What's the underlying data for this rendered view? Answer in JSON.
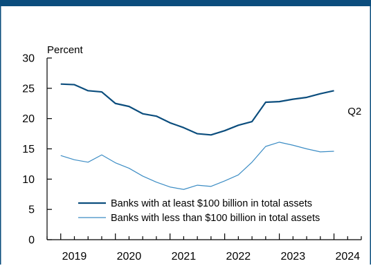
{
  "chart_data": {
    "type": "line",
    "ylabel": "Percent",
    "xlabel": "",
    "ylim": [
      0,
      30
    ],
    "y_ticks": [
      0,
      5,
      10,
      15,
      20,
      25,
      30
    ],
    "x_start": 2018.75,
    "x_end": 2024.5,
    "year_labels": [
      {
        "label": "2019",
        "x": 2019.25
      },
      {
        "label": "2020",
        "x": 2020.25
      },
      {
        "label": "2021",
        "x": 2021.25
      },
      {
        "label": "2022",
        "x": 2022.25
      },
      {
        "label": "2023",
        "x": 2023.25
      },
      {
        "label": "2024",
        "x": 2024.25
      }
    ],
    "annotation": {
      "text": "Q2",
      "x": 2024.25,
      "y": 21.2
    },
    "colors": {
      "frame": "#0b4d7d",
      "series_dark": "#0b4d7d",
      "series_light": "#3b8cc4",
      "axis": "#000000"
    },
    "grid": false,
    "legend_placement": "bottom-center",
    "series": [
      {
        "name": "Banks with at least $100 billion in total assets",
        "values": [
          {
            "x": 2019.0,
            "y": 25.7
          },
          {
            "x": 2019.25,
            "y": 25.6
          },
          {
            "x": 2019.5,
            "y": 24.6
          },
          {
            "x": 2019.75,
            "y": 24.4
          },
          {
            "x": 2020.0,
            "y": 22.5
          },
          {
            "x": 2020.25,
            "y": 22.0
          },
          {
            "x": 2020.5,
            "y": 20.8
          },
          {
            "x": 2020.75,
            "y": 20.4
          },
          {
            "x": 2021.0,
            "y": 19.3
          },
          {
            "x": 2021.25,
            "y": 18.5
          },
          {
            "x": 2021.5,
            "y": 17.5
          },
          {
            "x": 2021.75,
            "y": 17.3
          },
          {
            "x": 2022.0,
            "y": 18.0
          },
          {
            "x": 2022.25,
            "y": 18.9
          },
          {
            "x": 2022.5,
            "y": 19.5
          },
          {
            "x": 2022.75,
            "y": 22.7
          },
          {
            "x": 2023.0,
            "y": 22.8
          },
          {
            "x": 2023.25,
            "y": 23.2
          },
          {
            "x": 2023.5,
            "y": 23.5
          },
          {
            "x": 2023.75,
            "y": 24.1
          },
          {
            "x": 2024.0,
            "y": 24.6
          }
        ]
      },
      {
        "name": "Banks with less than $100 billion in total assets",
        "values": [
          {
            "x": 2019.0,
            "y": 13.9
          },
          {
            "x": 2019.25,
            "y": 13.2
          },
          {
            "x": 2019.5,
            "y": 12.8
          },
          {
            "x": 2019.75,
            "y": 14.0
          },
          {
            "x": 2020.0,
            "y": 12.7
          },
          {
            "x": 2020.25,
            "y": 11.8
          },
          {
            "x": 2020.5,
            "y": 10.5
          },
          {
            "x": 2020.75,
            "y": 9.5
          },
          {
            "x": 2021.0,
            "y": 8.7
          },
          {
            "x": 2021.25,
            "y": 8.3
          },
          {
            "x": 2021.5,
            "y": 9.0
          },
          {
            "x": 2021.75,
            "y": 8.8
          },
          {
            "x": 2022.0,
            "y": 9.7
          },
          {
            "x": 2022.25,
            "y": 10.7
          },
          {
            "x": 2022.5,
            "y": 12.8
          },
          {
            "x": 2022.75,
            "y": 15.4
          },
          {
            "x": 2023.0,
            "y": 16.1
          },
          {
            "x": 2023.25,
            "y": 15.6
          },
          {
            "x": 2023.5,
            "y": 15.0
          },
          {
            "x": 2023.75,
            "y": 14.5
          },
          {
            "x": 2024.0,
            "y": 14.6
          }
        ]
      }
    ]
  }
}
